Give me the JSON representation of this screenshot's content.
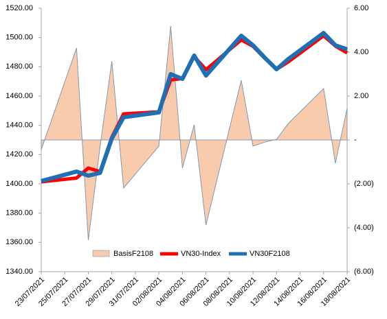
{
  "chart_data": {
    "type": "line",
    "x": [
      "23/07/2021",
      "26/07/2021",
      "27/07/2021",
      "28/07/2021",
      "29/07/2021",
      "30/07/2021",
      "02/08/2021",
      "03/08/2021",
      "04/08/2021",
      "05/08/2021",
      "06/08/2021",
      "09/08/2021",
      "10/08/2021",
      "11/08/2021",
      "12/08/2021",
      "13/08/2021",
      "16/08/2021",
      "17/08/2021",
      "18/08/2021"
    ],
    "xlim": [
      "23/07/2021",
      "18/08/2021"
    ],
    "xticks": [
      "23/07/2021",
      "25/07/2021",
      "27/07/2021",
      "29/07/2021",
      "31/07/2021",
      "02/08/2021",
      "04/08/2021",
      "06/08/2021",
      "08/08/2021",
      "10/08/2021",
      "12/08/2021",
      "14/08/2021",
      "16/08/2021",
      "18/08/2021"
    ],
    "series": [
      {
        "name": "BasisF2108",
        "type": "area",
        "axis": "y2",
        "color": "#f8cbad",
        "edge": "#8497b0",
        "values": [
          -0.44,
          4.19,
          -4.56,
          -0.3,
          3.59,
          -2.19,
          -0.28,
          5.19,
          -1.28,
          0.69,
          -3.88,
          2.72,
          -0.28,
          -0.1,
          0.03,
          0.75,
          2.34,
          -1.06,
          1.44
        ]
      },
      {
        "name": "VN30-Index",
        "type": "line",
        "color": "#ff0000",
        "values": [
          1401.4,
          1404,
          1410.8,
          1408.4,
          1431.9,
          1447.8,
          1449.2,
          1471,
          1472,
          1487,
          1478,
          1498.4,
          1494,
          1485.8,
          1478.3,
          1483.4,
          1501.2,
          1494.2,
          1489.5
        ]
      },
      {
        "name": "VN30F2108",
        "type": "line",
        "color": "#1f6fb4",
        "values": [
          1401.9,
          1408.4,
          1405.6,
          1407.5,
          1431,
          1445.5,
          1448.8,
          1475,
          1471.7,
          1487.7,
          1474,
          1501.2,
          1494.7,
          1486.2,
          1478.3,
          1485.3,
          1503.1,
          1494.7,
          1491.9
        ]
      }
    ],
    "ylim": [
      1340,
      1520
    ],
    "yticks": [
      {
        "value": 1340,
        "label": "1340.00"
      },
      {
        "value": 1360,
        "label": "1360.00"
      },
      {
        "value": 1380,
        "label": "1380.00"
      },
      {
        "value": 1400,
        "label": "1400.00"
      },
      {
        "value": 1420,
        "label": "1420.00"
      },
      {
        "value": 1440,
        "label": "1440.00"
      },
      {
        "value": 1460,
        "label": "1460.00"
      },
      {
        "value": 1480,
        "label": "1480.00"
      },
      {
        "value": 1500,
        "label": "1500.00"
      },
      {
        "value": 1520,
        "label": "1520.00"
      }
    ],
    "y2lim": [
      -6,
      6
    ],
    "y2ticks": [
      {
        "value": -6,
        "label": "(6.00)"
      },
      {
        "value": -4,
        "label": "(4.00)"
      },
      {
        "value": -2,
        "label": "(2.00)"
      },
      {
        "value": 0,
        "label": "-"
      },
      {
        "value": 2,
        "label": "2.00"
      },
      {
        "value": 4,
        "label": "4.00"
      },
      {
        "value": 6,
        "label": "6.00"
      }
    ],
    "legend": "bottom"
  }
}
